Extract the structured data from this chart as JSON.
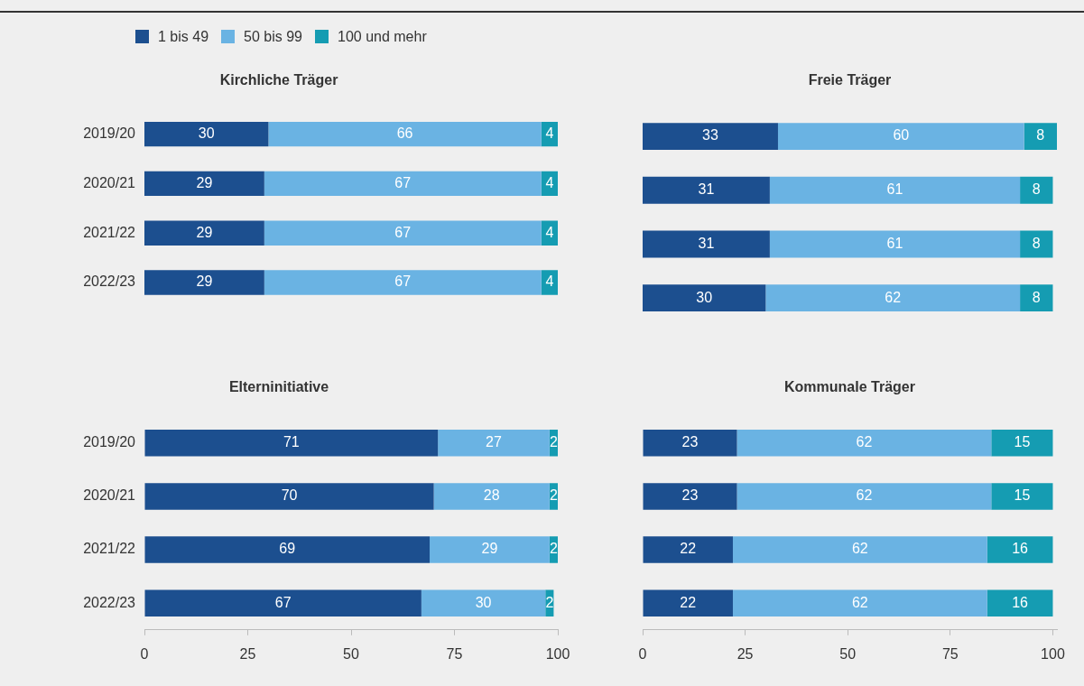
{
  "chart_data": [
    {
      "type": "bar",
      "orientation": "horizontal",
      "stacked": true,
      "title": "Kirchliche Träger",
      "categories": [
        "2019/20",
        "2020/21",
        "2021/22",
        "2022/23"
      ],
      "series": [
        {
          "name": "1 bis 49",
          "color": "#1c4f8f",
          "values": [
            30,
            29,
            29,
            29
          ]
        },
        {
          "name": "50 bis 99",
          "color": "#6ab3e3",
          "values": [
            66,
            67,
            67,
            67
          ]
        },
        {
          "name": "100 und mehr",
          "color": "#159cb2",
          "values": [
            4,
            4,
            4,
            4
          ]
        }
      ],
      "xlim": [
        0,
        100
      ],
      "xticks": [
        0,
        25,
        50,
        75,
        100
      ],
      "tick_labels": "y",
      "data_labels": true,
      "legend": "top left",
      "grid": false
    },
    {
      "type": "bar",
      "orientation": "horizontal",
      "stacked": true,
      "title": "Freie Träger",
      "categories": [
        "2019/20",
        "2020/21",
        "2021/22",
        "2022/23"
      ],
      "series": [
        {
          "color": "#1c4f8f",
          "values": [
            33,
            31,
            31,
            30
          ]
        },
        {
          "color": "#6ab3e3",
          "values": [
            60,
            61,
            61,
            62
          ]
        },
        {
          "color": "#159cb2",
          "values": [
            8,
            8,
            8,
            8
          ]
        }
      ],
      "xlim": [
        0,
        101
      ],
      "xticks": [
        0,
        25,
        50,
        75,
        100
      ],
      "tick_labels": false,
      "data_labels": true,
      "grid": false
    },
    {
      "type": "bar",
      "orientation": "horizontal",
      "stacked": true,
      "title": "Elterninitiative",
      "categories": [
        "2019/20",
        "2020/21",
        "2021/22",
        "2022/23"
      ],
      "series": [
        {
          "color": "#1c4f8f",
          "values": [
            71,
            70,
            69,
            67
          ]
        },
        {
          "color": "#6ab3e3",
          "values": [
            27,
            28,
            29,
            30
          ]
        },
        {
          "color": "#159cb2",
          "values": [
            2,
            2,
            2,
            2
          ]
        }
      ],
      "xlim": [
        0,
        100
      ],
      "xticks": [
        0,
        25,
        50,
        75,
        100
      ],
      "data_labels": true,
      "grid": false
    },
    {
      "type": "bar",
      "orientation": "horizontal",
      "stacked": true,
      "title": "Kommunale Träger",
      "categories": [
        "2019/20",
        "2020/21",
        "2021/22",
        "2022/23"
      ],
      "series": [
        {
          "color": "#1c4f8f",
          "values": [
            23,
            23,
            22,
            22
          ]
        },
        {
          "color": "#6ab3e3",
          "values": [
            62,
            62,
            62,
            62
          ]
        },
        {
          "color": "#159cb2",
          "values": [
            15,
            15,
            16,
            16
          ]
        }
      ],
      "xlim": [
        0,
        101
      ],
      "xticks": [
        0,
        25,
        50,
        75,
        100
      ],
      "tick_labels": "x",
      "data_labels": true,
      "grid": false
    }
  ]
}
